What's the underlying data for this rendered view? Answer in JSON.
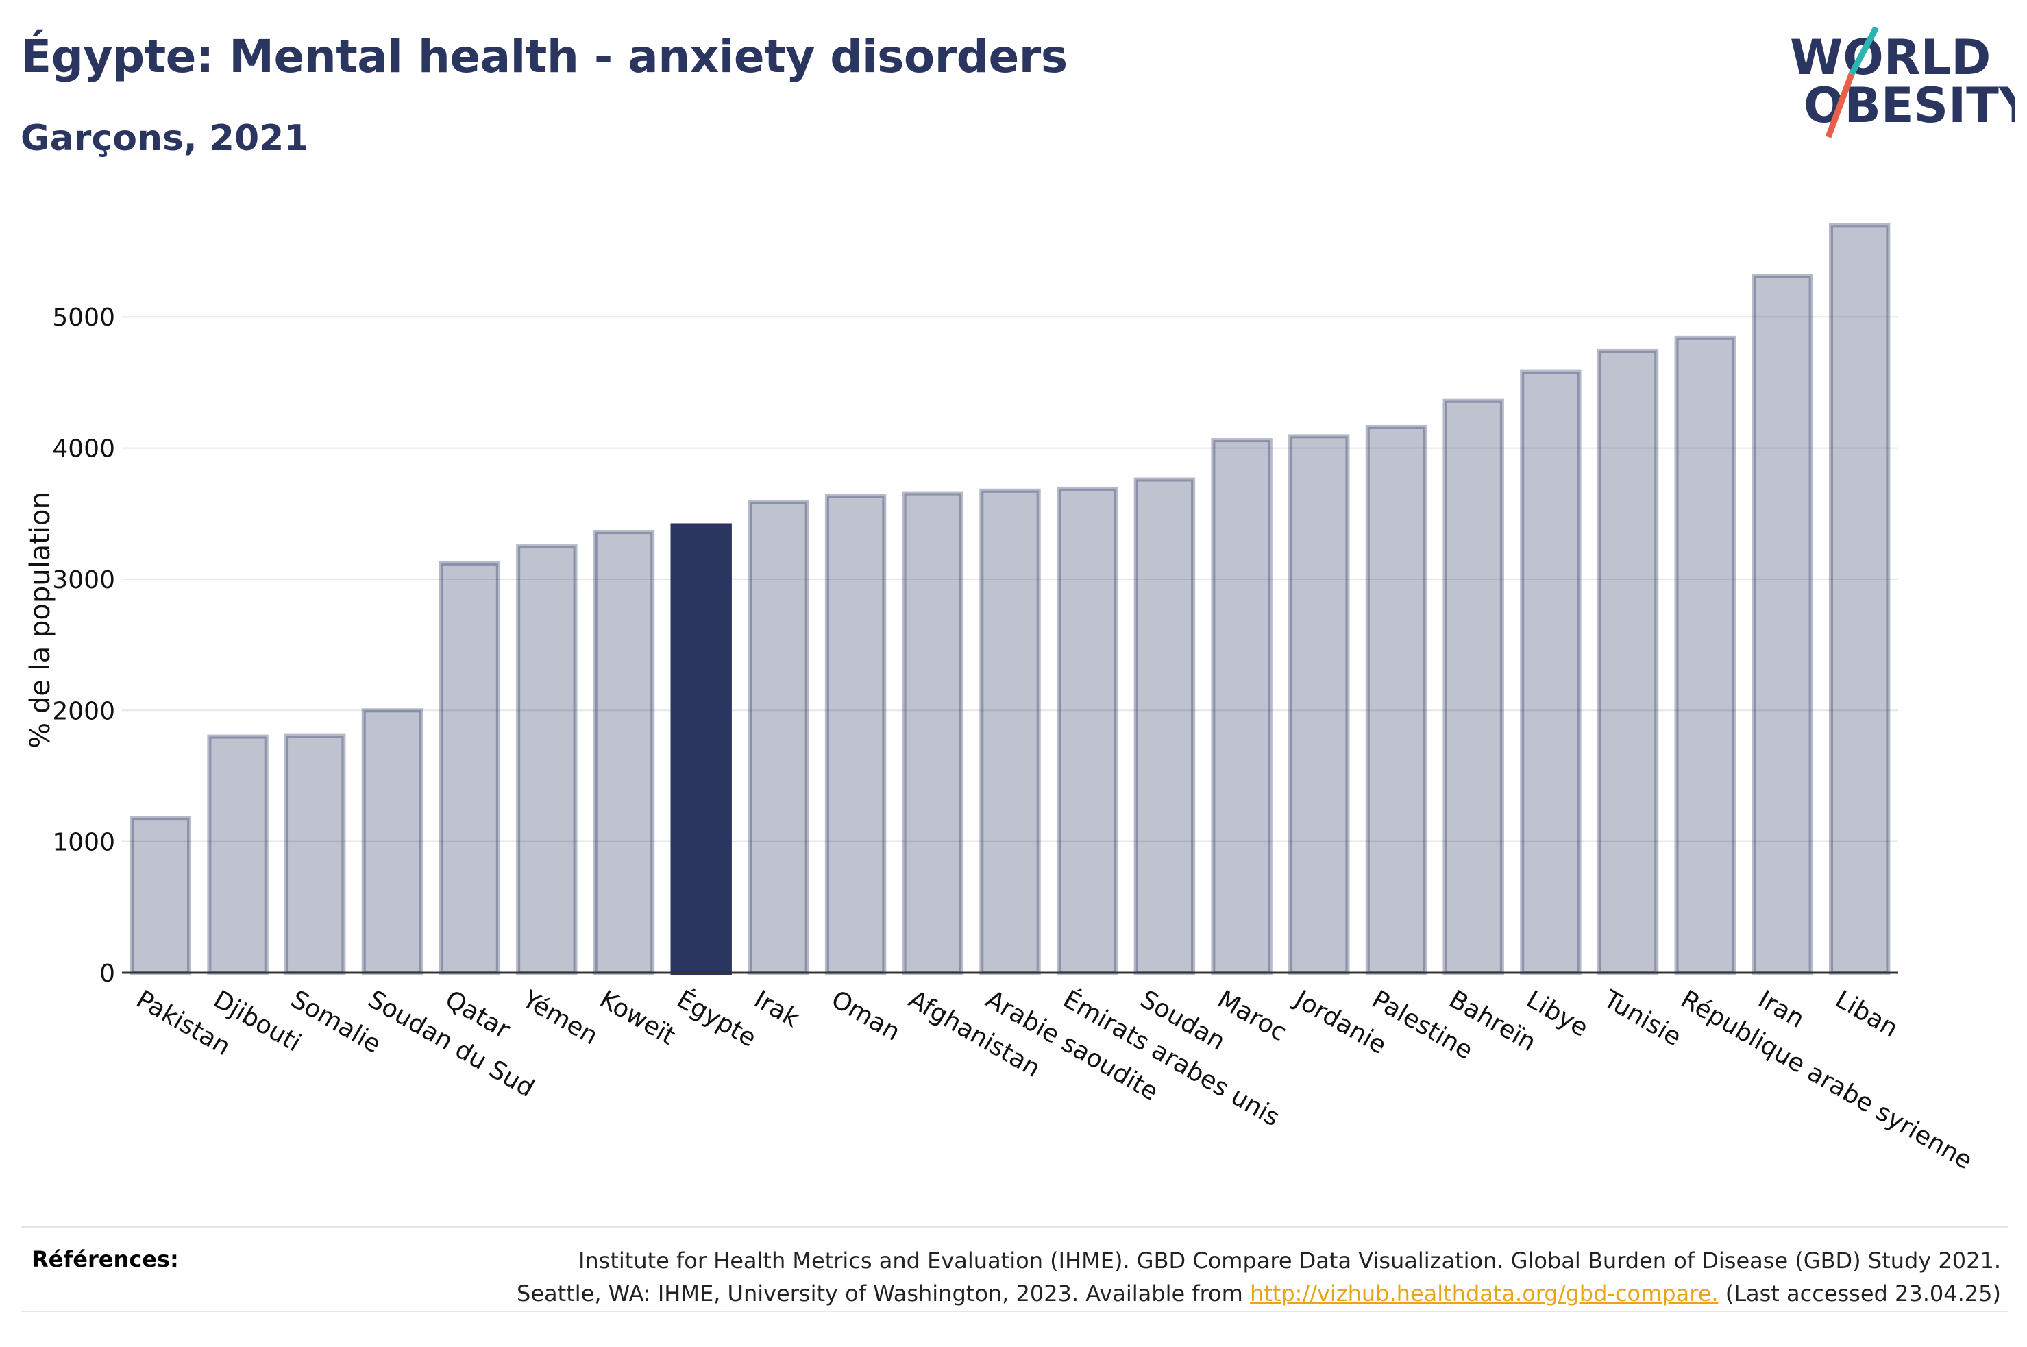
{
  "header": {
    "title": "Égypte: Mental health - anxiety disorders",
    "subtitle": "Garçons, 2021"
  },
  "logo": {
    "line1": "WORLD",
    "line2": "OBESITY",
    "colors": {
      "text": "#2b3660",
      "slash_top": "#2cb5b0",
      "slash_bottom": "#e8604c"
    }
  },
  "chart_data": {
    "type": "bar",
    "title": "Égypte: Mental health - anxiety disorders",
    "subtitle": "Garçons, 2021",
    "ylabel": "% de la population",
    "xlabel": "",
    "ylim": [
      0,
      5900
    ],
    "yticks": [
      0,
      1000,
      2000,
      3000,
      4000,
      5000
    ],
    "grid": true,
    "highlight": "Égypte",
    "colors": {
      "bar": "#2b3660",
      "bar_fill_opacity": 0.3,
      "highlight": "#2b3660"
    },
    "categories": [
      "Pakistan",
      "Djibouti",
      "Somalie",
      "Soudan du Sud",
      "Qatar",
      "Yémen",
      "Koweït",
      "Égypte",
      "Irak",
      "Oman",
      "Afghanistan",
      "Arabie saoudite",
      "Émirats arabes unis",
      "Soudan",
      "Maroc",
      "Jordanie",
      "Palestine",
      "Bahreïn",
      "Libye",
      "Tunisie",
      "République arabe syrienne",
      "Iran",
      "Liban"
    ],
    "values": [
      1180,
      1800,
      1805,
      2000,
      3120,
      3250,
      3360,
      3410,
      3590,
      3635,
      3655,
      3675,
      3690,
      3760,
      4060,
      4090,
      4160,
      4360,
      4580,
      4740,
      4840,
      5310,
      5700
    ]
  },
  "footer": {
    "label": "Références:",
    "line1": "Institute for Health Metrics and Evaluation (IHME). GBD Compare Data Visualization. Global Burden of Disease (GBD) Study 2021.",
    "line2_prefix": "Seattle, WA: IHME, University of Washington, 2023. Available from",
    "link": "http://vizhub.healthdata.org/gbd-compare.",
    "line2_suffix": "(Last accessed 23.04.25)"
  }
}
